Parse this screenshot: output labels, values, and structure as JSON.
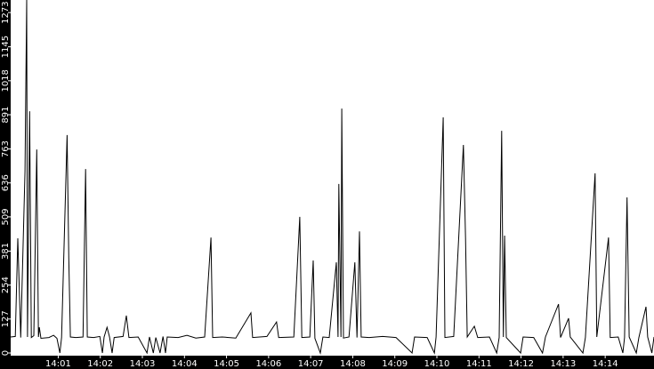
{
  "chart_data": {
    "type": "line",
    "xlim": [
      -0.13,
      15.16
    ],
    "xticks": [
      {
        "value": 1,
        "label": "14:01"
      },
      {
        "value": 2,
        "label": "14:02"
      },
      {
        "value": 3,
        "label": "14:03"
      },
      {
        "value": 4,
        "label": "14:04"
      },
      {
        "value": 5,
        "label": "14:05"
      },
      {
        "value": 6,
        "label": "14:06"
      },
      {
        "value": 7,
        "label": "14:07"
      },
      {
        "value": 8,
        "label": "14:08"
      },
      {
        "value": 9,
        "label": "14:09"
      },
      {
        "value": 10,
        "label": "14:10"
      },
      {
        "value": 11,
        "label": "14:11"
      },
      {
        "value": 12,
        "label": "14:12"
      },
      {
        "value": 13,
        "label": "14:13"
      },
      {
        "value": 14,
        "label": "14:14"
      }
    ],
    "ylim": [
      0,
      1320
    ],
    "yticks": [
      0,
      127,
      254,
      381,
      509,
      636,
      763,
      891,
      1018,
      1145,
      1273
    ],
    "x": [
      -0.13,
      -0.02,
      0.04,
      0.11,
      0.21,
      0.25,
      0.27,
      0.32,
      0.36,
      0.42,
      0.49,
      0.53,
      0.55,
      0.59,
      0.78,
      0.89,
      0.97,
      1.04,
      1.08,
      1.21,
      1.25,
      1.29,
      1.42,
      1.59,
      1.65,
      1.69,
      1.84,
      1.99,
      2.05,
      2.09,
      2.16,
      2.22,
      2.28,
      2.33,
      2.54,
      2.62,
      2.68,
      2.9,
      3.11,
      3.17,
      3.26,
      3.32,
      3.42,
      3.49,
      3.55,
      3.59,
      3.85,
      4.06,
      4.27,
      4.48,
      4.63,
      4.67,
      4.9,
      5.22,
      5.58,
      5.62,
      5.96,
      6.19,
      6.24,
      6.6,
      6.74,
      6.79,
      6.98,
      7.06,
      7.1,
      7.23,
      7.29,
      7.44,
      7.61,
      7.65,
      7.67,
      7.72,
      7.74,
      7.78,
      7.91,
      8.05,
      8.1,
      8.16,
      8.2,
      8.39,
      8.71,
      9.03,
      9.41,
      9.47,
      9.77,
      9.94,
      9.98,
      10.15,
      10.19,
      10.4,
      10.63,
      10.68,
      10.72,
      10.89,
      10.97,
      11.25,
      11.42,
      11.48,
      11.54,
      11.58,
      11.61,
      11.65,
      11.99,
      12.05,
      12.3,
      12.51,
      12.58,
      12.89,
      12.94,
      13.13,
      13.17,
      13.47,
      13.53,
      13.76,
      13.8,
      14.08,
      14.12,
      14.31,
      14.42,
      14.46,
      14.52,
      14.57,
      14.74,
      14.8,
      14.97,
      15.01,
      15.11,
      15.16
    ],
    "series": [
      {
        "color": "#000000",
        "values": [
          60,
          62,
          429,
          58,
          680,
          1320,
          60,
          904,
          58,
          65,
          761,
          60,
          96,
          55,
          58,
          66,
          55,
          0,
          58,
          815,
          356,
          60,
          58,
          60,
          688,
          60,
          58,
          62,
          0,
          60,
          96,
          60,
          0,
          58,
          62,
          140,
          58,
          60,
          0,
          60,
          0,
          58,
          0,
          62,
          0,
          60,
          58,
          66,
          56,
          60,
          432,
          58,
          60,
          56,
          150,
          58,
          62,
          116,
          58,
          60,
          509,
          58,
          60,
          346,
          55,
          0,
          60,
          58,
          339,
          60,
          632,
          60,
          914,
          56,
          60,
          339,
          58,
          455,
          60,
          58,
          62,
          58,
          0,
          60,
          58,
          0,
          60,
          881,
          58,
          62,
          778,
          429,
          60,
          100,
          58,
          60,
          0,
          58,
          831,
          60,
          439,
          58,
          0,
          60,
          58,
          0,
          60,
          183,
          58,
          130,
          60,
          0,
          58,
          672,
          60,
          432,
          58,
          60,
          0,
          58,
          582,
          60,
          0,
          58,
          173,
          60,
          0,
          60
        ]
      }
    ]
  }
}
